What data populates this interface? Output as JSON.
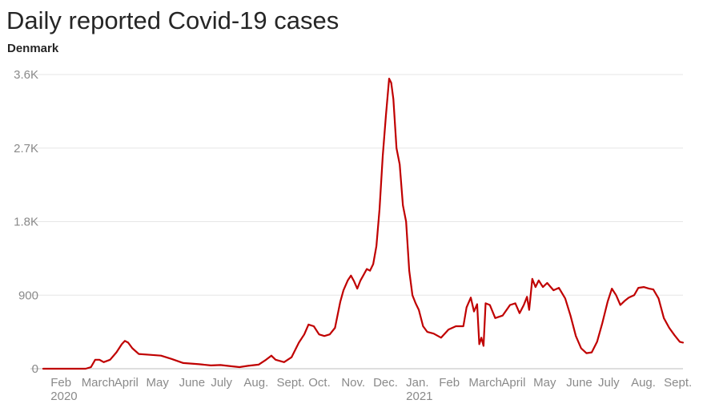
{
  "title": "Daily reported Covid-19 cases",
  "subtitle": "Denmark",
  "colors": {
    "line": "#c00000",
    "grid": "#e6e6e6",
    "axis": "#bdbdbd",
    "tick_text": "#8a8a8a"
  },
  "chart_data": {
    "type": "line",
    "title": "Daily reported Covid-19 cases",
    "subtitle": "Denmark",
    "xlabel": "",
    "ylabel": "",
    "ylim": [
      0,
      3600
    ],
    "yticks": [
      0,
      900,
      1800,
      2700,
      3600
    ],
    "ytick_labels": [
      "0",
      "900",
      "1.8K",
      "2.7K",
      "3.6K"
    ],
    "grid": true,
    "x_month_labels": [
      {
        "index": 1,
        "label": "Feb",
        "year": "2020"
      },
      {
        "index": 2,
        "label": "March"
      },
      {
        "index": 3,
        "label": "April"
      },
      {
        "index": 4,
        "label": "May"
      },
      {
        "index": 5,
        "label": "June"
      },
      {
        "index": 6,
        "label": "July"
      },
      {
        "index": 7,
        "label": "Aug."
      },
      {
        "index": 8,
        "label": "Sept."
      },
      {
        "index": 9,
        "label": "Oct."
      },
      {
        "index": 10,
        "label": "Nov."
      },
      {
        "index": 11,
        "label": "Dec."
      },
      {
        "index": 12,
        "label": "Jan.",
        "year": "2021"
      },
      {
        "index": 13,
        "label": "Feb"
      },
      {
        "index": 14,
        "label": "March"
      },
      {
        "index": 15,
        "label": "April"
      },
      {
        "index": 16,
        "label": "May"
      },
      {
        "index": 17,
        "label": "June"
      },
      {
        "index": 18,
        "label": "July"
      },
      {
        "index": 19,
        "label": "Aug."
      },
      {
        "index": 20,
        "label": "Sept."
      }
    ],
    "series": [
      {
        "color": "#c00000",
        "points": [
          [
            "2020-01-25",
            0
          ],
          [
            "2020-02-15",
            0
          ],
          [
            "2020-03-05",
            0
          ],
          [
            "2020-03-10",
            20
          ],
          [
            "2020-03-14",
            110
          ],
          [
            "2020-03-18",
            110
          ],
          [
            "2020-03-22",
            80
          ],
          [
            "2020-03-28",
            110
          ],
          [
            "2020-04-03",
            200
          ],
          [
            "2020-04-08",
            300
          ],
          [
            "2020-04-11",
            340
          ],
          [
            "2020-04-14",
            320
          ],
          [
            "2020-04-18",
            250
          ],
          [
            "2020-04-24",
            180
          ],
          [
            "2020-05-05",
            170
          ],
          [
            "2020-05-15",
            160
          ],
          [
            "2020-05-25",
            120
          ],
          [
            "2020-06-05",
            70
          ],
          [
            "2020-06-20",
            55
          ],
          [
            "2020-07-01",
            40
          ],
          [
            "2020-07-10",
            45
          ],
          [
            "2020-07-20",
            30
          ],
          [
            "2020-07-28",
            20
          ],
          [
            "2020-08-05",
            35
          ],
          [
            "2020-08-15",
            50
          ],
          [
            "2020-08-22",
            110
          ],
          [
            "2020-08-27",
            160
          ],
          [
            "2020-08-31",
            110
          ],
          [
            "2020-09-08",
            80
          ],
          [
            "2020-09-15",
            140
          ],
          [
            "2020-09-22",
            320
          ],
          [
            "2020-09-27",
            420
          ],
          [
            "2020-10-01",
            540
          ],
          [
            "2020-10-06",
            520
          ],
          [
            "2020-10-11",
            420
          ],
          [
            "2020-10-16",
            400
          ],
          [
            "2020-10-21",
            420
          ],
          [
            "2020-10-26",
            500
          ],
          [
            "2020-10-31",
            820
          ],
          [
            "2020-11-03",
            960
          ],
          [
            "2020-11-07",
            1080
          ],
          [
            "2020-11-10",
            1140
          ],
          [
            "2020-11-13",
            1070
          ],
          [
            "2020-11-16",
            980
          ],
          [
            "2020-11-19",
            1080
          ],
          [
            "2020-11-22",
            1150
          ],
          [
            "2020-11-25",
            1220
          ],
          [
            "2020-11-28",
            1200
          ],
          [
            "2020-12-01",
            1280
          ],
          [
            "2020-12-04",
            1500
          ],
          [
            "2020-12-07",
            1950
          ],
          [
            "2020-12-10",
            2600
          ],
          [
            "2020-12-13",
            3100
          ],
          [
            "2020-12-16",
            3550
          ],
          [
            "2020-12-18",
            3500
          ],
          [
            "2020-12-20",
            3300
          ],
          [
            "2020-12-23",
            2700
          ],
          [
            "2020-12-26",
            2500
          ],
          [
            "2020-12-29",
            2000
          ],
          [
            "2021-01-01",
            1800
          ],
          [
            "2021-01-04",
            1200
          ],
          [
            "2021-01-07",
            900
          ],
          [
            "2021-01-10",
            800
          ],
          [
            "2021-01-13",
            720
          ],
          [
            "2021-01-17",
            520
          ],
          [
            "2021-01-21",
            450
          ],
          [
            "2021-01-27",
            430
          ],
          [
            "2021-02-03",
            380
          ],
          [
            "2021-02-10",
            480
          ],
          [
            "2021-02-17",
            520
          ],
          [
            "2021-02-24",
            520
          ],
          [
            "2021-02-27",
            750
          ],
          [
            "2021-03-03",
            870
          ],
          [
            "2021-03-06",
            700
          ],
          [
            "2021-03-09",
            790
          ],
          [
            "2021-03-11",
            300
          ],
          [
            "2021-03-13",
            380
          ],
          [
            "2021-03-15",
            280
          ],
          [
            "2021-03-17",
            800
          ],
          [
            "2021-03-21",
            780
          ],
          [
            "2021-03-26",
            620
          ],
          [
            "2021-04-02",
            650
          ],
          [
            "2021-04-09",
            780
          ],
          [
            "2021-04-14",
            800
          ],
          [
            "2021-04-18",
            680
          ],
          [
            "2021-04-22",
            780
          ],
          [
            "2021-04-25",
            880
          ],
          [
            "2021-04-27",
            720
          ],
          [
            "2021-04-30",
            1100
          ],
          [
            "2021-05-03",
            1000
          ],
          [
            "2021-05-06",
            1080
          ],
          [
            "2021-05-10",
            1000
          ],
          [
            "2021-05-14",
            1050
          ],
          [
            "2021-05-20",
            960
          ],
          [
            "2021-05-25",
            990
          ],
          [
            "2021-05-31",
            860
          ],
          [
            "2021-06-05",
            650
          ],
          [
            "2021-06-10",
            400
          ],
          [
            "2021-06-15",
            250
          ],
          [
            "2021-06-20",
            190
          ],
          [
            "2021-06-25",
            200
          ],
          [
            "2021-06-30",
            330
          ],
          [
            "2021-07-05",
            560
          ],
          [
            "2021-07-10",
            820
          ],
          [
            "2021-07-14",
            980
          ],
          [
            "2021-07-18",
            900
          ],
          [
            "2021-07-22",
            780
          ],
          [
            "2021-07-26",
            830
          ],
          [
            "2021-07-30",
            870
          ],
          [
            "2021-08-04",
            900
          ],
          [
            "2021-08-08",
            990
          ],
          [
            "2021-08-13",
            1000
          ],
          [
            "2021-08-18",
            980
          ],
          [
            "2021-08-22",
            970
          ],
          [
            "2021-08-27",
            860
          ],
          [
            "2021-09-01",
            620
          ],
          [
            "2021-09-06",
            500
          ],
          [
            "2021-09-11",
            410
          ],
          [
            "2021-09-16",
            330
          ],
          [
            "2021-09-19",
            320
          ]
        ]
      }
    ]
  }
}
